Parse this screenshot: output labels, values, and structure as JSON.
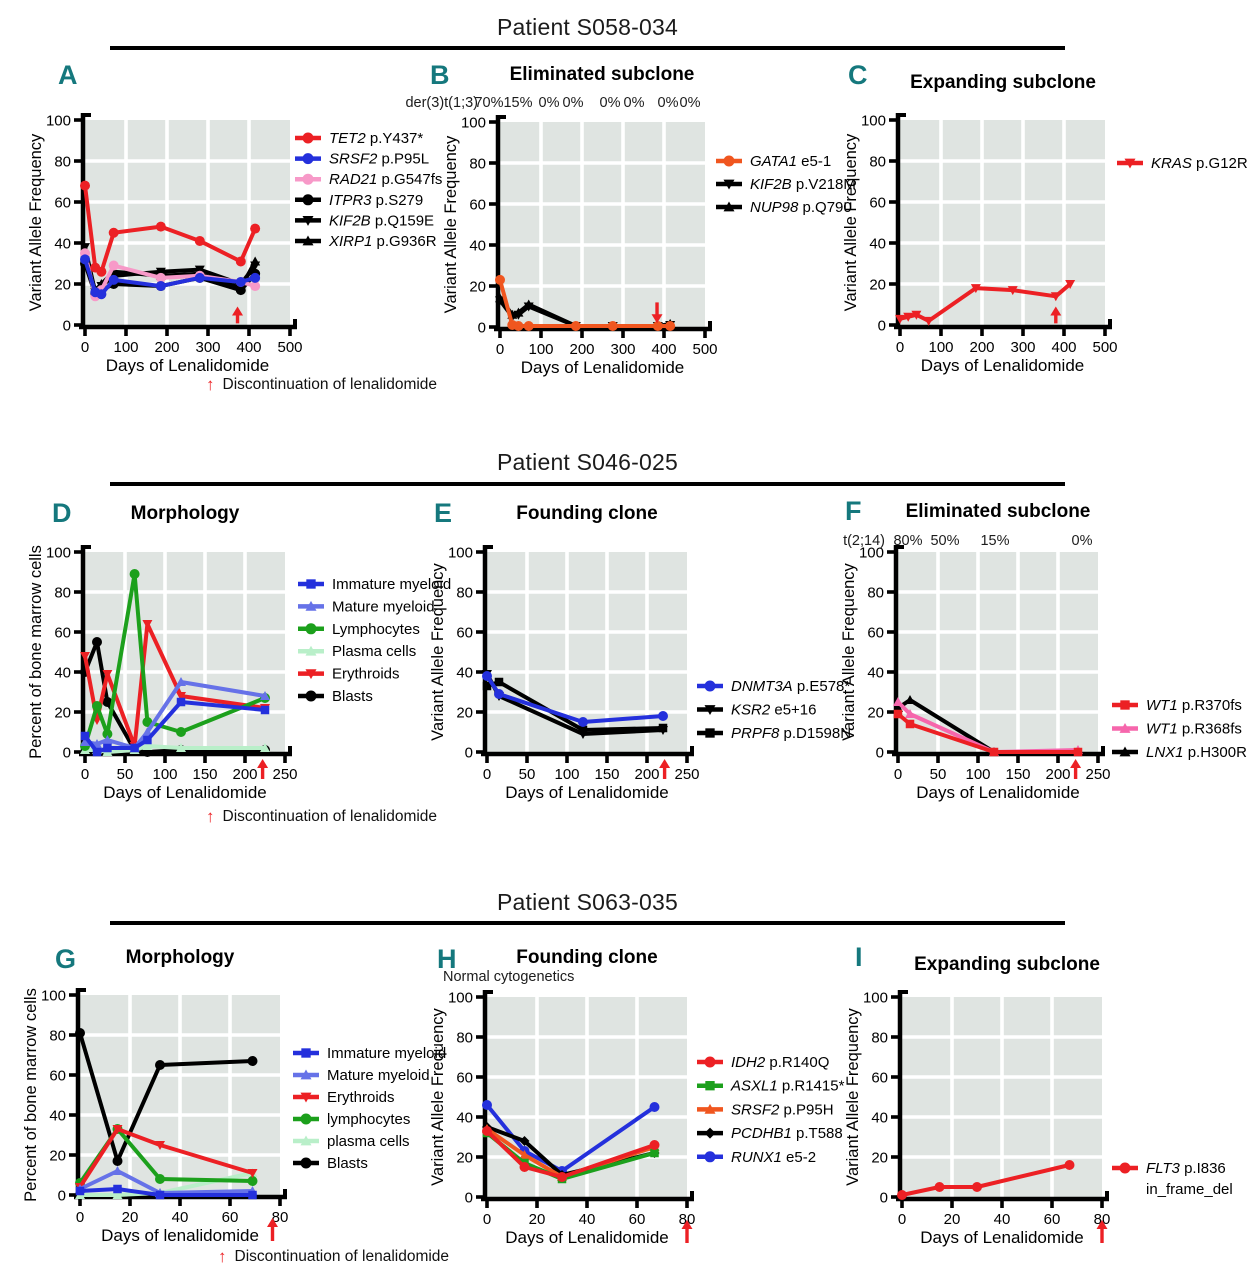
{
  "colors": {
    "plot_bg": "#DFE4E1",
    "grid": "#FFFFFF",
    "axis": "#000000",
    "panel_letter": "#15787D",
    "arrow_red": "#EC2024",
    "red": "#EC2024",
    "blue": "#2430DC",
    "periwinkle": "#6672E8",
    "pink_light": "#F799C8",
    "pink": "#F666AC",
    "green": "#1CA01C",
    "light_green": "#B9EFC9",
    "orange": "#F0561F",
    "black": "#000000"
  },
  "sections": [
    {
      "patient": "Patient S058-034",
      "footnote": "Discontinuation of lenalidomide"
    },
    {
      "patient": "Patient S046-025",
      "footnote": "Discontinuation of lenalidomide"
    },
    {
      "patient": "Patient S063-035",
      "footnote": "Discontinuation of lenalidomide"
    }
  ],
  "chart_data": [
    {
      "type": "line",
      "section": 0,
      "letter": "A",
      "title": "",
      "xlabel": "Days of Lenalidomide",
      "ylabel": "Variant Allele Frequency",
      "xlim": [
        0,
        500
      ],
      "xticks": [
        0,
        100,
        200,
        300,
        400,
        500
      ],
      "ylim": [
        0,
        100
      ],
      "yticks": [
        0,
        20,
        40,
        60,
        80,
        100
      ],
      "annotation": null,
      "arrow": {
        "day": 372,
        "dir": "up",
        "pos": "plot"
      },
      "series": [
        {
          "gene": "TET2",
          "suffix": " p.Y437*",
          "color": "#EC2024",
          "marker": "circle",
          "x": [
            0,
            25,
            40,
            70,
            185,
            280,
            380,
            415
          ],
          "y": [
            68,
            28,
            26,
            45,
            48,
            41,
            31,
            47
          ]
        },
        {
          "gene": "SRSF2",
          "suffix": " p.P95L",
          "color": "#2430DC",
          "marker": "circle",
          "x": [
            0,
            25,
            40,
            70,
            185,
            280,
            380,
            415
          ],
          "y": [
            32,
            16,
            15,
            22,
            19,
            23,
            21,
            23
          ]
        },
        {
          "gene": "RAD21",
          "suffix": " p.G547fs",
          "color": "#F799C8",
          "marker": "circle",
          "x": [
            0,
            25,
            40,
            70,
            185,
            280,
            380,
            415
          ],
          "y": [
            35,
            14,
            17,
            29,
            23,
            24,
            21,
            19
          ]
        },
        {
          "gene": "ITPR3",
          "suffix": " p.S279",
          "color": "#000000",
          "marker": "circle",
          "x": [
            0,
            25,
            40,
            70,
            185,
            280,
            380,
            415
          ],
          "y": [
            30,
            15,
            17,
            20,
            19,
            23,
            17,
            25
          ]
        },
        {
          "gene": "KIF2B",
          "suffix": " p.Q159E",
          "color": "#000000",
          "marker": "tri-down",
          "x": [
            0,
            25,
            40,
            70,
            185,
            280,
            380,
            415
          ],
          "y": [
            38,
            16,
            19,
            24,
            26,
            27,
            20,
            29
          ]
        },
        {
          "gene": "XIRP1",
          "suffix": " p.G936R",
          "color": "#000000",
          "marker": "tri-up",
          "x": [
            0,
            25,
            40,
            70,
            185,
            280,
            380,
            415
          ],
          "y": [
            33,
            17,
            20,
            26,
            24,
            25,
            18,
            31
          ]
        }
      ]
    },
    {
      "type": "line",
      "section": 0,
      "letter": "B",
      "title": "Eliminated subclone",
      "xlabel": "Days of Lenalidomide",
      "ylabel": "Variant Allele Frequency",
      "xlim": [
        0,
        500
      ],
      "xticks": [
        0,
        100,
        200,
        300,
        400,
        500
      ],
      "ylim": [
        0,
        100
      ],
      "yticks": [
        0,
        20,
        40,
        60,
        80,
        100
      ],
      "annotation": {
        "prefix": "der(3)t(1;3)",
        "values": [
          "70%",
          "15%",
          "0%",
          "0%",
          "0%",
          "0%",
          "0%",
          "0%"
        ]
      },
      "arrow": {
        "day": 383,
        "dir": "down",
        "pos": "plot"
      },
      "series": [
        {
          "gene": "GATA1",
          "suffix": " e5-1",
          "color": "#F0561F",
          "marker": "circle",
          "x": [
            0,
            30,
            45,
            70,
            185,
            275,
            385,
            415
          ],
          "y": [
            23,
            1,
            0.5,
            0.5,
            0.5,
            0.5,
            0.5,
            0.5
          ]
        },
        {
          "gene": "KIF2B",
          "suffix": " p.V218M",
          "color": "#000000",
          "marker": "tri-down",
          "x": [
            0,
            30,
            45,
            70,
            185,
            275,
            385,
            415
          ],
          "y": [
            13,
            5,
            6,
            10,
            0.5,
            0.5,
            0.5,
            1
          ]
        },
        {
          "gene": "NUP98",
          "suffix": " p.Q790",
          "color": "#000000",
          "marker": "tri-up",
          "x": [
            0,
            30,
            45,
            70,
            185,
            275,
            385,
            415
          ],
          "y": [
            14,
            6,
            7,
            11,
            0.5,
            0.5,
            0.5,
            1.5
          ]
        }
      ]
    },
    {
      "type": "line",
      "section": 0,
      "letter": "C",
      "title": "Expanding subclone",
      "xlabel": "Days of Lenalidomide",
      "ylabel": "Variant Allele Frequency",
      "xlim": [
        0,
        500
      ],
      "xticks": [
        0,
        100,
        200,
        300,
        400,
        500
      ],
      "ylim": [
        0,
        100
      ],
      "yticks": [
        0,
        20,
        40,
        60,
        80,
        100
      ],
      "annotation": null,
      "arrow": {
        "day": 380,
        "dir": "up",
        "pos": "plot"
      },
      "series": [
        {
          "gene": "KRAS",
          "suffix": " p.G12R",
          "color": "#EC2024",
          "marker": "tri-down",
          "x": [
            0,
            20,
            40,
            70,
            185,
            275,
            380,
            415
          ],
          "y": [
            3,
            4,
            5,
            2,
            18,
            17,
            14,
            20
          ]
        }
      ]
    },
    {
      "type": "line",
      "section": 1,
      "letter": "D",
      "title": "Morphology",
      "xlabel": "Days of Lenalidomide",
      "ylabel": "Percent of bone marrow cells",
      "xlim": [
        0,
        250
      ],
      "xticks": [
        0,
        50,
        100,
        150,
        200,
        250
      ],
      "ylim": [
        0,
        100
      ],
      "yticks": [
        0,
        20,
        40,
        60,
        80,
        100
      ],
      "annotation": null,
      "arrow": {
        "day": 222,
        "dir": "up",
        "pos": "axis"
      },
      "series": [
        {
          "gene": "",
          "suffix": "Immature myeloid",
          "color": "#2430DC",
          "marker": "square",
          "x": [
            0,
            15,
            28,
            62,
            78,
            120,
            225
          ],
          "y": [
            8,
            0,
            2,
            2,
            6,
            25,
            21
          ]
        },
        {
          "gene": "",
          "suffix": "Mature myeloid",
          "color": "#6672E8",
          "marker": "tri-up",
          "x": [
            0,
            15,
            28,
            62,
            78,
            120,
            225
          ],
          "y": [
            5,
            4,
            6,
            2,
            10,
            35,
            28
          ]
        },
        {
          "gene": "",
          "suffix": "Lymphocytes",
          "color": "#1CA01C",
          "marker": "circle",
          "x": [
            0,
            15,
            28,
            62,
            78,
            120,
            225
          ],
          "y": [
            3,
            23,
            9,
            89,
            15,
            10,
            27
          ]
        },
        {
          "gene": "",
          "suffix": "Plasma cells",
          "color": "#B9EFC9",
          "marker": "tri-up",
          "x": [
            0,
            15,
            28,
            62,
            78,
            120,
            225
          ],
          "y": [
            1,
            1,
            0,
            1,
            3,
            2,
            2
          ]
        },
        {
          "gene": "",
          "suffix": "Erythroids",
          "color": "#EC2024",
          "marker": "tri-down",
          "x": [
            0,
            15,
            28,
            62,
            78,
            120,
            225
          ],
          "y": [
            48,
            16,
            39,
            3,
            64,
            28,
            22
          ]
        },
        {
          "gene": "",
          "suffix": "Blasts",
          "color": "#000000",
          "marker": "circle",
          "x": [
            0,
            15,
            28,
            62,
            78,
            120,
            225
          ],
          "y": [
            40,
            55,
            25,
            1,
            0,
            1,
            1
          ]
        }
      ]
    },
    {
      "type": "line",
      "section": 1,
      "letter": "E",
      "title": "Founding clone",
      "xlabel": "Days of Lenalidomide",
      "ylabel": "Variant Allele Frequency",
      "xlim": [
        0,
        250
      ],
      "xticks": [
        0,
        50,
        100,
        150,
        200,
        250
      ],
      "ylim": [
        0,
        100
      ],
      "yticks": [
        0,
        20,
        40,
        60,
        80,
        100
      ],
      "annotation": null,
      "arrow": {
        "day": 222,
        "dir": "up",
        "pos": "axis"
      },
      "series": [
        {
          "gene": "DNMT3A",
          "suffix": " p.E578*",
          "color": "#2430DC",
          "marker": "circle",
          "x": [
            0,
            15,
            120,
            220
          ],
          "y": [
            38,
            29,
            15,
            18
          ]
        },
        {
          "gene": "KSR2",
          "suffix": " e5+16",
          "color": "#000000",
          "marker": "tri-down",
          "x": [
            0,
            15,
            120,
            220
          ],
          "y": [
            39,
            28,
            9,
            11
          ]
        },
        {
          "gene": "PRPF8",
          "suffix": " p.D1598N",
          "color": "#000000",
          "marker": "square",
          "x": [
            0,
            15,
            120,
            220
          ],
          "y": [
            33,
            35,
            11,
            12
          ]
        }
      ]
    },
    {
      "type": "line",
      "section": 1,
      "letter": "F",
      "title": "Eliminated subclone",
      "xlabel": "Days of Lenalidomide",
      "ylabel": "Variant Allele Frequency",
      "xlim": [
        0,
        250
      ],
      "xticks": [
        0,
        50,
        100,
        150,
        200,
        250
      ],
      "ylim": [
        0,
        100
      ],
      "yticks": [
        0,
        20,
        40,
        60,
        80,
        100
      ],
      "annotation": {
        "prefix": "t(2;14)",
        "values": [
          "80%",
          "50%",
          "15%",
          "0%"
        ]
      },
      "arrow": {
        "day": 222,
        "dir": "up",
        "pos": "axis"
      },
      "series": [
        {
          "gene": "WT1",
          "suffix": " p.R370fs",
          "color": "#EC2024",
          "marker": "square",
          "x": [
            0,
            15,
            120,
            225
          ],
          "y": [
            19,
            14,
            0,
            0
          ]
        },
        {
          "gene": "WT1",
          "suffix": " p.R368fs",
          "color": "#F666AC",
          "marker": "tri-up",
          "x": [
            0,
            15,
            120,
            225
          ],
          "y": [
            25,
            19,
            0,
            1
          ]
        },
        {
          "gene": "LNX1",
          "suffix": " p.H300R",
          "color": "#000000",
          "marker": "tri-up",
          "x": [
            0,
            15,
            120,
            225
          ],
          "y": [
            22,
            26,
            0,
            0
          ]
        }
      ]
    },
    {
      "type": "line",
      "section": 2,
      "letter": "G",
      "title": "Morphology",
      "xlabel": "Days of lenalidomide",
      "ylabel": "Percent of bone marrow cells",
      "xlim": [
        0,
        80
      ],
      "xticks": [
        0,
        20,
        40,
        60,
        80
      ],
      "ylim": [
        0,
        100
      ],
      "yticks": [
        0,
        20,
        40,
        60,
        80,
        100
      ],
      "annotation": null,
      "arrow": {
        "day": 77,
        "dir": "up",
        "pos": "below"
      },
      "series": [
        {
          "gene": "",
          "suffix": "Immature myeloid",
          "color": "#2430DC",
          "marker": "square",
          "x": [
            0,
            15,
            32,
            69
          ],
          "y": [
            2,
            3,
            0,
            0
          ]
        },
        {
          "gene": "",
          "suffix": "Mature myeloid",
          "color": "#6672E8",
          "marker": "tri-up",
          "x": [
            0,
            15,
            32,
            69
          ],
          "y": [
            3,
            12,
            1,
            2
          ]
        },
        {
          "gene": "",
          "suffix": "Erythroids",
          "color": "#EC2024",
          "marker": "tri-down",
          "x": [
            0,
            15,
            32,
            69
          ],
          "y": [
            4,
            33,
            25,
            11
          ]
        },
        {
          "gene": "",
          "suffix": "lymphocytes",
          "color": "#1CA01C",
          "marker": "circle",
          "x": [
            0,
            15,
            32,
            69
          ],
          "y": [
            6,
            33,
            8,
            7
          ]
        },
        {
          "gene": "",
          "suffix": "plasma cells",
          "color": "#B9EFC9",
          "marker": "tri-up",
          "x": [
            0,
            15,
            32,
            69
          ],
          "y": [
            0,
            0,
            1,
            11
          ]
        },
        {
          "gene": "",
          "suffix": "Blasts",
          "color": "#000000",
          "marker": "circle",
          "x": [
            0,
            15,
            32,
            69
          ],
          "y": [
            81,
            17,
            65,
            67
          ]
        }
      ]
    },
    {
      "type": "line",
      "section": 2,
      "letter": "H",
      "title": "Founding clone",
      "xlabel": "Days of Lenalidomide",
      "ylabel": "Variant Allele Frequency",
      "xlim": [
        0,
        80
      ],
      "xticks": [
        0,
        20,
        40,
        60,
        80
      ],
      "ylim": [
        0,
        100
      ],
      "yticks": [
        0,
        20,
        40,
        60,
        80,
        100
      ],
      "annotation": {
        "prefix": "Normal cytogenetics",
        "values": []
      },
      "arrow": {
        "day": 80,
        "dir": "up",
        "pos": "below"
      },
      "series": [
        {
          "gene": "IDH2",
          "suffix": " p.R140Q",
          "color": "#EC2024",
          "marker": "circle",
          "x": [
            0,
            15,
            30,
            67
          ],
          "y": [
            33,
            15,
            10,
            26
          ]
        },
        {
          "gene": "ASXL1",
          "suffix": " p.R1415*",
          "color": "#1CA01C",
          "marker": "square",
          "x": [
            0,
            15,
            30,
            67
          ],
          "y": [
            32,
            17,
            9,
            22
          ]
        },
        {
          "gene": "SRSF2",
          "suffix": " p.P95H",
          "color": "#F0561F",
          "marker": "tri-up",
          "x": [
            0,
            15,
            30,
            67
          ],
          "y": [
            34,
            21,
            10,
            25
          ]
        },
        {
          "gene": "PCDHB1",
          "suffix": " p.T588",
          "color": "#000000",
          "marker": "diamond",
          "x": [
            0,
            15,
            30,
            67
          ],
          "y": [
            35,
            28,
            11,
            22
          ]
        },
        {
          "gene": "RUNX1",
          "suffix": " e5-2",
          "color": "#2430DC",
          "marker": "circle",
          "x": [
            0,
            15,
            30,
            67
          ],
          "y": [
            46,
            23,
            13,
            45
          ]
        }
      ]
    },
    {
      "type": "line",
      "section": 2,
      "letter": "I",
      "title": "Expanding subclone",
      "xlabel": "Days of Lenalidomide",
      "ylabel": "Variant Allele Frequency",
      "xlim": [
        0,
        80
      ],
      "xticks": [
        0,
        20,
        40,
        60,
        80
      ],
      "ylim": [
        0,
        100
      ],
      "yticks": [
        0,
        20,
        40,
        60,
        80,
        100
      ],
      "annotation": null,
      "arrow": {
        "day": 80,
        "dir": "up",
        "pos": "below"
      },
      "series": [
        {
          "gene": "FLT3",
          "suffix": " p.I836",
          "label2": "in_frame_del",
          "color": "#EC2024",
          "marker": "circle",
          "x": [
            0,
            15,
            30,
            67
          ],
          "y": [
            1,
            5,
            5,
            16
          ]
        }
      ]
    }
  ]
}
